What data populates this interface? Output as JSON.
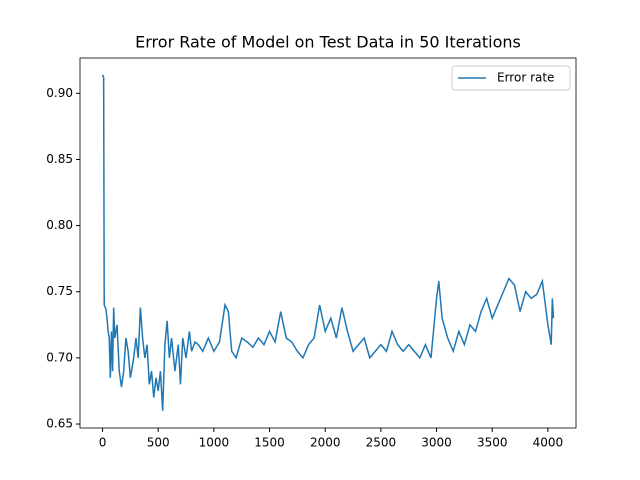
{
  "chart_data": {
    "type": "line",
    "title": "Error Rate of Model on Test Data in 50 Iterations",
    "x": [
      0,
      10,
      15,
      30,
      40,
      50,
      60,
      70,
      80,
      90,
      100,
      110,
      130,
      150,
      170,
      190,
      210,
      230,
      250,
      280,
      300,
      320,
      340,
      360,
      380,
      400,
      420,
      440,
      460,
      480,
      500,
      520,
      540,
      560,
      580,
      600,
      620,
      650,
      680,
      700,
      720,
      750,
      780,
      800,
      830,
      860,
      900,
      950,
      1000,
      1050,
      1100,
      1130,
      1160,
      1200,
      1250,
      1300,
      1350,
      1400,
      1450,
      1500,
      1550,
      1600,
      1650,
      1700,
      1750,
      1800,
      1850,
      1900,
      1950,
      2000,
      2050,
      2100,
      2150,
      2200,
      2250,
      2300,
      2350,
      2400,
      2450,
      2500,
      2550,
      2600,
      2650,
      2700,
      2750,
      2800,
      2850,
      2900,
      2950,
      3000,
      3020,
      3050,
      3100,
      3150,
      3200,
      3250,
      3300,
      3350,
      3400,
      3450,
      3500,
      3550,
      3600,
      3650,
      3700,
      3750,
      3800,
      3850,
      3900,
      3950,
      4000,
      4030,
      4040,
      4050
    ],
    "series": [
      {
        "name": "Error rate",
        "color": "#1f77b4",
        "values": [
          0.914,
          0.912,
          0.74,
          0.737,
          0.73,
          0.72,
          0.715,
          0.685,
          0.72,
          0.69,
          0.738,
          0.715,
          0.725,
          0.69,
          0.678,
          0.69,
          0.715,
          0.705,
          0.685,
          0.7,
          0.715,
          0.7,
          0.738,
          0.715,
          0.7,
          0.71,
          0.68,
          0.69,
          0.67,
          0.685,
          0.675,
          0.69,
          0.66,
          0.71,
          0.728,
          0.7,
          0.715,
          0.69,
          0.71,
          0.68,
          0.715,
          0.7,
          0.72,
          0.705,
          0.712,
          0.71,
          0.705,
          0.715,
          0.705,
          0.712,
          0.74,
          0.735,
          0.705,
          0.7,
          0.715,
          0.712,
          0.708,
          0.715,
          0.71,
          0.72,
          0.712,
          0.735,
          0.715,
          0.712,
          0.705,
          0.7,
          0.71,
          0.715,
          0.74,
          0.72,
          0.73,
          0.715,
          0.738,
          0.72,
          0.705,
          0.71,
          0.715,
          0.7,
          0.705,
          0.71,
          0.705,
          0.72,
          0.71,
          0.705,
          0.71,
          0.705,
          0.7,
          0.71,
          0.7,
          0.745,
          0.758,
          0.73,
          0.715,
          0.705,
          0.72,
          0.71,
          0.725,
          0.72,
          0.735,
          0.745,
          0.73,
          0.74,
          0.75,
          0.76,
          0.755,
          0.735,
          0.75,
          0.745,
          0.748,
          0.758,
          0.725,
          0.71,
          0.745,
          0.73
        ]
      }
    ],
    "xlim": [
      -202.5,
      4252.5
    ],
    "xticks": [
      0,
      500,
      1000,
      1500,
      2000,
      2500,
      3000,
      3500,
      4000
    ],
    "ylim": [
      0.647,
      0.9267
    ],
    "yticks": [
      0.65,
      {
        "value": 0.7,
        "label": "0.70"
      },
      0.75,
      {
        "value": 0.8,
        "label": "0.80"
      },
      0.85,
      {
        "value": 0.9,
        "label": "0.90"
      }
    ],
    "legend": "upper right"
  }
}
